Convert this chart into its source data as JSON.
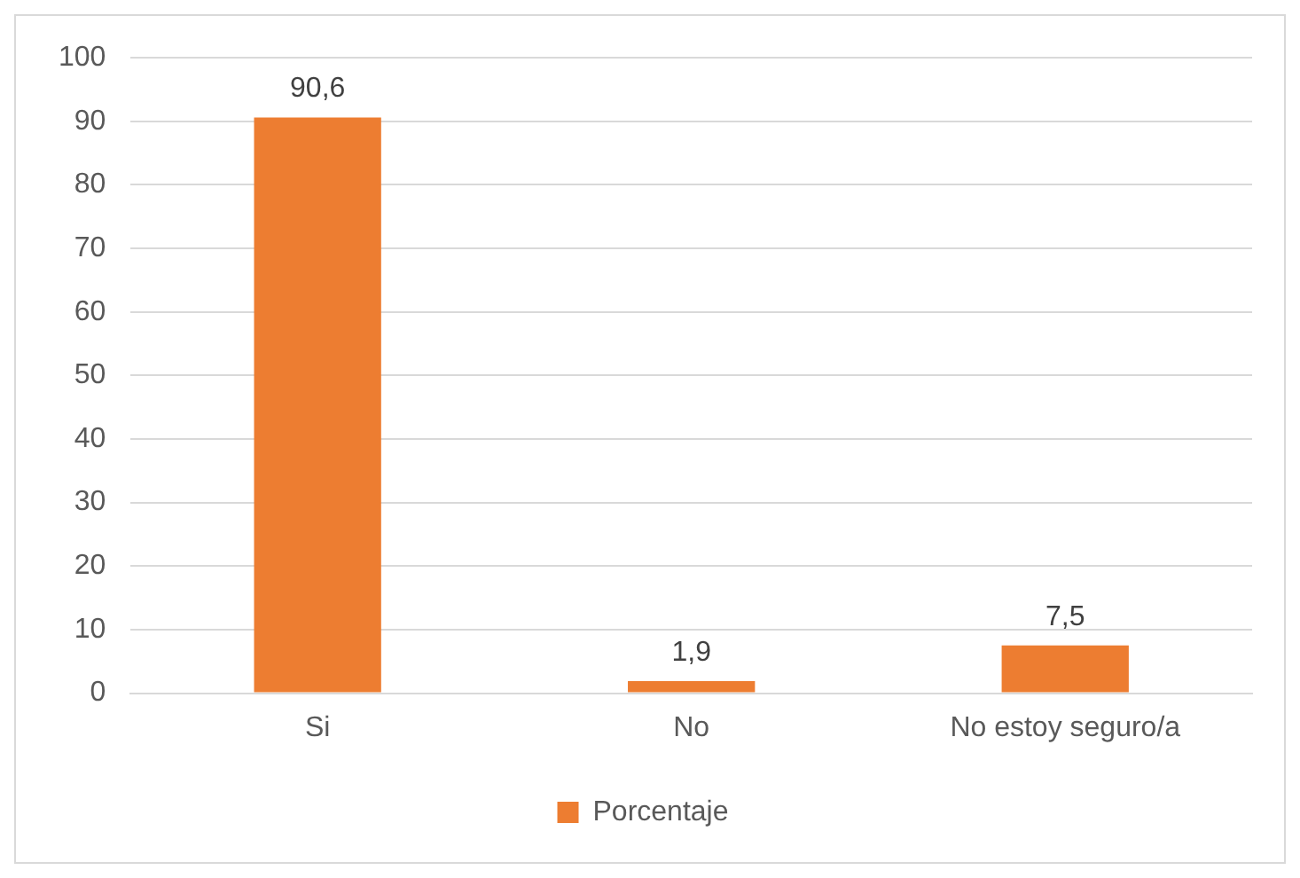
{
  "chart_data": {
    "type": "bar",
    "categories": [
      "Si",
      "No",
      "No estoy seguro/a"
    ],
    "series": [
      {
        "name": "Porcentaje",
        "color": "#ed7d31",
        "values": [
          90.6,
          1.9,
          7.5
        ],
        "value_labels": [
          "90,6",
          "1,9",
          "7,5"
        ]
      }
    ],
    "ylim": [
      0,
      100
    ],
    "yticks": [
      0,
      10,
      20,
      30,
      40,
      50,
      60,
      70,
      80,
      90,
      100
    ],
    "grid": "y",
    "legend": "bottom"
  }
}
